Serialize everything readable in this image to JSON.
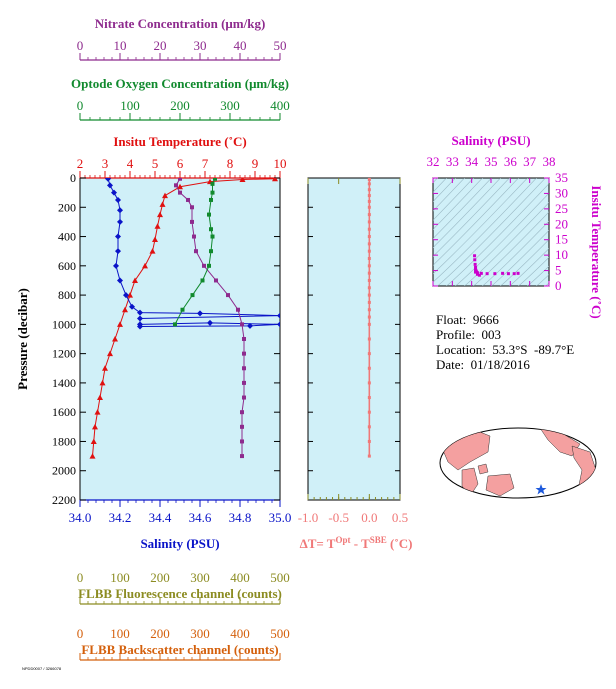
{
  "float_info": {
    "float": "Float:  9666",
    "profile": "Profile:  003",
    "location": "Location:  53.3°S  -89.7°E",
    "date": "Date:  01/18/2016"
  },
  "footer_text": "NPDD0007 / 3266078",
  "colors": {
    "nitrate": "#8e2b8e",
    "oxygen": "#118a2e",
    "temperature": "#e01010",
    "salinity": "#0a14c8",
    "fluorescence": "#8c8c22",
    "backscatter": "#d4600c",
    "delta_t": "#f07878",
    "plot_bg": "#d0f0f8",
    "ts_bg": "#d0f0f8",
    "ts_axis": "#cc00cc"
  },
  "map": {
    "land_color": "#f4a0a0",
    "marker_color": "#1e5adc",
    "marker": "star-icon"
  },
  "chart_data": [
    {
      "id": "main",
      "type": "line",
      "ylabel": "Pressure (decibar)",
      "ylim": [
        2200,
        0
      ],
      "yticks": [
        0,
        200,
        400,
        600,
        800,
        1000,
        1200,
        1400,
        1600,
        1800,
        2000,
        2200
      ],
      "axes": [
        {
          "key": "nitrate",
          "label": "Nitrate Concentration (μm/kg)",
          "range": [
            0,
            50
          ],
          "ticks": [
            0,
            10,
            20,
            30,
            40,
            50
          ]
        },
        {
          "key": "oxygen",
          "label": "Optode Oxygen Concentration (μm/kg)",
          "range": [
            0,
            400
          ],
          "ticks": [
            0,
            100,
            200,
            300,
            400
          ]
        },
        {
          "key": "temperature",
          "label": "Insitu Temperature (˚C)",
          "range": [
            2,
            10
          ],
          "ticks": [
            2,
            3,
            4,
            5,
            6,
            7,
            8,
            9,
            10
          ]
        },
        {
          "key": "salinity",
          "label": "Salinity (PSU)",
          "range": [
            34.0,
            35.0
          ],
          "ticks": [
            "34.0",
            "34.2",
            "34.4",
            "34.6",
            "34.8",
            "35.0"
          ]
        },
        {
          "key": "fluorescence",
          "label": "FLBB Fluorescence channel (counts)",
          "range": [
            0,
            500
          ],
          "ticks": [
            0,
            100,
            200,
            300,
            400,
            500
          ]
        },
        {
          "key": "backscatter",
          "label": "FLBB Backscatter channel (counts)",
          "range": [
            0,
            500
          ],
          "ticks": [
            0,
            100,
            200,
            300,
            400,
            500
          ]
        }
      ],
      "series": [
        {
          "key": "temperature",
          "marker": "triangle",
          "points": [
            [
              9.8,
              5
            ],
            [
              8.5,
              10
            ],
            [
              7.2,
              25
            ],
            [
              6.0,
              60
            ],
            [
              5.4,
              120
            ],
            [
              5.3,
              180
            ],
            [
              5.2,
              250
            ],
            [
              5.1,
              330
            ],
            [
              5.0,
              420
            ],
            [
              4.9,
              500
            ],
            [
              4.6,
              600
            ],
            [
              4.2,
              700
            ],
            [
              4.0,
              800
            ],
            [
              3.8,
              900
            ],
            [
              3.6,
              1000
            ],
            [
              3.4,
              1100
            ],
            [
              3.2,
              1200
            ],
            [
              3.0,
              1300
            ],
            [
              2.9,
              1400
            ],
            [
              2.8,
              1500
            ],
            [
              2.7,
              1600
            ],
            [
              2.6,
              1700
            ],
            [
              2.55,
              1800
            ],
            [
              2.5,
              1900
            ]
          ]
        },
        {
          "key": "salinity",
          "marker": "diamond",
          "points": [
            [
              34.14,
              5
            ],
            [
              34.15,
              50
            ],
            [
              34.17,
              100
            ],
            [
              34.19,
              150
            ],
            [
              34.2,
              220
            ],
            [
              34.2,
              300
            ],
            [
              34.19,
              400
            ],
            [
              34.19,
              500
            ],
            [
              34.18,
              600
            ],
            [
              34.2,
              700
            ],
            [
              34.23,
              800
            ],
            [
              34.26,
              880
            ],
            [
              34.3,
              920
            ],
            [
              34.6,
              925
            ],
            [
              35.0,
              940
            ],
            [
              34.3,
              960
            ],
            [
              34.3,
              1000
            ],
            [
              34.65,
              990
            ],
            [
              35.0,
              1000
            ],
            [
              34.85,
              1010
            ],
            [
              34.3,
              1015
            ]
          ]
        },
        {
          "key": "nitrate",
          "marker": "square",
          "points": [
            [
              25,
              5
            ],
            [
              24,
              50
            ],
            [
              25,
              100
            ],
            [
              27,
              150
            ],
            [
              28,
              200
            ],
            [
              28,
              300
            ],
            [
              28.5,
              400
            ],
            [
              29,
              500
            ],
            [
              31,
              600
            ],
            [
              34,
              700
            ],
            [
              37,
              800
            ],
            [
              39.5,
              900
            ],
            [
              40.5,
              1000
            ],
            [
              41,
              1100
            ],
            [
              41,
              1200
            ],
            [
              41,
              1300
            ],
            [
              41,
              1400
            ],
            [
              41,
              1500
            ],
            [
              40.5,
              1600
            ],
            [
              40.5,
              1700
            ],
            [
              40.5,
              1800
            ],
            [
              40.5,
              1900
            ]
          ]
        },
        {
          "key": "oxygen",
          "marker": "square",
          "points": [
            [
              270,
              5
            ],
            [
              265,
              40
            ],
            [
              265,
              100
            ],
            [
              262,
              150
            ],
            [
              258,
              250
            ],
            [
              262,
              350
            ],
            [
              265,
              400
            ],
            [
              262,
              500
            ],
            [
              258,
              600
            ],
            [
              245,
              700
            ],
            [
              225,
              800
            ],
            [
              205,
              900
            ],
            [
              190,
              1000
            ]
          ]
        }
      ]
    },
    {
      "id": "delta_t",
      "type": "scatter",
      "xlabel": "ΔT= T",
      "xlabel_sup1": "Opt",
      "xlabel_mid": " - T",
      "xlabel_sup2": "SBE",
      "xlabel_end": " (˚C)",
      "xlim": [
        -1.0,
        0.5
      ],
      "xticks": [
        "-1.0",
        "-0.5",
        "0.0",
        "0.5"
      ],
      "ylim": [
        2200,
        0
      ],
      "points": [
        [
          0.0,
          10
        ],
        [
          0.0,
          40
        ],
        [
          0.0,
          80
        ],
        [
          0.0,
          120
        ],
        [
          0.0,
          160
        ],
        [
          0.0,
          200
        ],
        [
          0.0,
          250
        ],
        [
          0.0,
          300
        ],
        [
          0.0,
          350
        ],
        [
          0.0,
          400
        ],
        [
          0.0,
          450
        ],
        [
          0.0,
          500
        ],
        [
          0.0,
          550
        ],
        [
          0.0,
          600
        ],
        [
          0.0,
          650
        ],
        [
          0.0,
          700
        ],
        [
          0.0,
          750
        ],
        [
          0.0,
          800
        ],
        [
          0.0,
          850
        ],
        [
          0.0,
          900
        ],
        [
          0.0,
          950
        ],
        [
          0.0,
          1000
        ],
        [
          0.0,
          1100
        ],
        [
          0.0,
          1200
        ],
        [
          0.0,
          1300
        ],
        [
          0.0,
          1400
        ],
        [
          0.0,
          1500
        ],
        [
          0.0,
          1600
        ],
        [
          0.0,
          1700
        ],
        [
          0.0,
          1800
        ],
        [
          0.0,
          1900
        ]
      ]
    },
    {
      "id": "ts",
      "type": "scatter",
      "title": "Salinity (PSU)",
      "ylabel": "Insitu Temperature (˚C)",
      "xlim": [
        32,
        38
      ],
      "xticks": [
        32,
        33,
        34,
        35,
        36,
        37,
        38
      ],
      "ylim": [
        0,
        35
      ],
      "yticks": [
        0,
        5,
        10,
        15,
        20,
        25,
        30,
        35
      ],
      "points": [
        [
          34.15,
          9.8
        ],
        [
          34.16,
          8.5
        ],
        [
          34.18,
          7.0
        ],
        [
          34.2,
          6.0
        ],
        [
          34.2,
          5.4
        ],
        [
          34.22,
          5.0
        ],
        [
          34.25,
          4.6
        ],
        [
          34.3,
          4.3
        ],
        [
          34.5,
          4.1
        ],
        [
          34.8,
          4.0
        ],
        [
          35.2,
          4.0
        ],
        [
          35.6,
          4.1
        ],
        [
          35.9,
          4.0
        ],
        [
          36.2,
          4.0
        ],
        [
          36.4,
          4.1
        ],
        [
          34.2,
          4.5
        ],
        [
          34.3,
          3.8
        ],
        [
          34.4,
          3.5
        ]
      ]
    }
  ]
}
